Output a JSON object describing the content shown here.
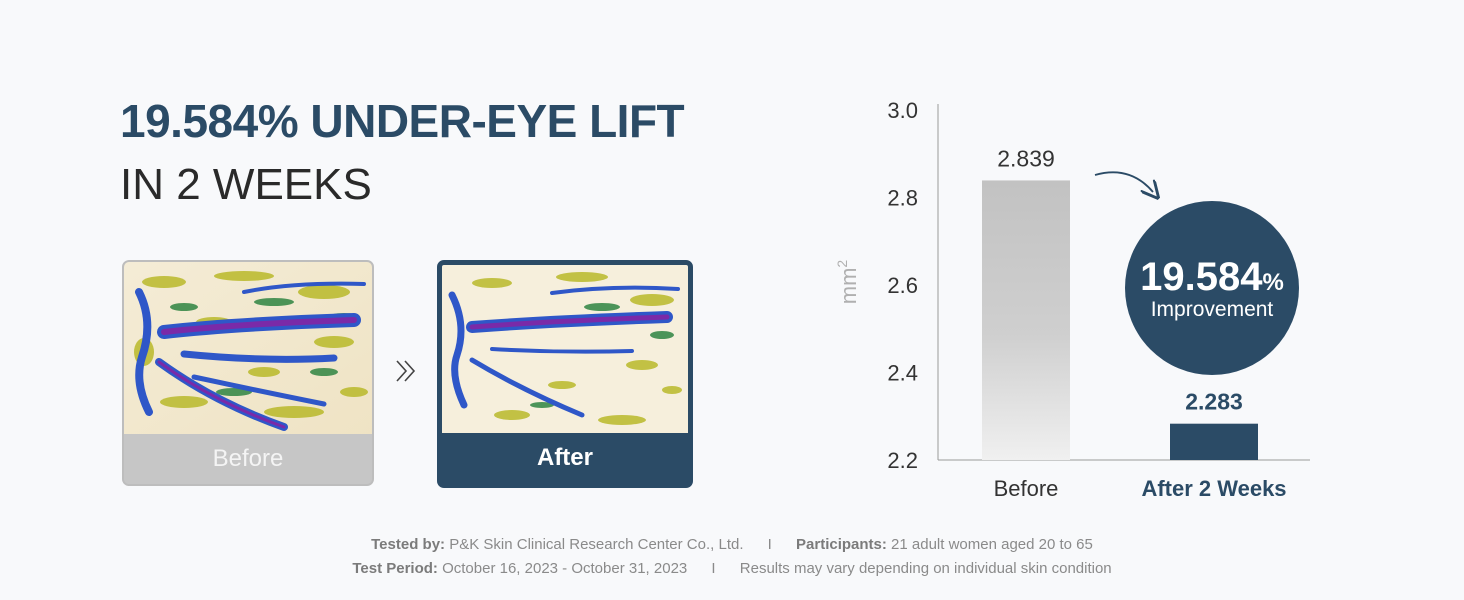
{
  "headline": {
    "line1": "19.584% UNDER-EYE LIFT",
    "line2": "IN 2 WEEKS"
  },
  "photos": {
    "before_label": "Before",
    "after_label": "After",
    "arrow_icon": "double-chevron-right-icon"
  },
  "chart_data": {
    "type": "bar",
    "categories": [
      "Before",
      "After 2 Weeks"
    ],
    "values": [
      2.839,
      2.283
    ],
    "data_labels": [
      "2.839",
      "2.283"
    ],
    "ylabel": "mm",
    "ylabel_superscript": "2",
    "ylim": [
      2.2,
      3.0
    ],
    "yticks": [
      "2.2",
      "2.4",
      "2.6",
      "2.8",
      "3.0"
    ],
    "grid": false,
    "colors": [
      "#c4c4c4",
      "#2b4b66"
    ],
    "callout": {
      "value": "19.584",
      "unit": "%",
      "label": "Improvement",
      "color": "#2b4b66"
    }
  },
  "footer": {
    "tested_by_label": "Tested by:",
    "tested_by_value": "P&K Skin Clinical Research Center Co., Ltd.",
    "participants_label": "Participants:",
    "participants_value": "21 adult women aged 20 to 65",
    "test_period_label": "Test Period:",
    "test_period_value": "October 16, 2023 - October 31, 2023",
    "disclaimer": "Results may vary depending on individual skin condition",
    "separator": "I"
  }
}
